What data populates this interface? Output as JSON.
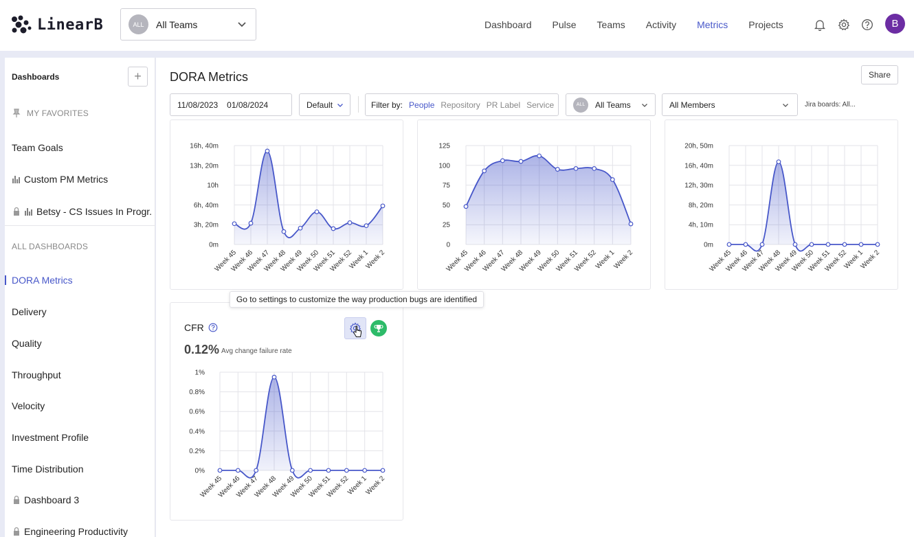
{
  "logo": {
    "text": "LinearB"
  },
  "team_selector": {
    "avatar": "ALL",
    "label": "All Teams"
  },
  "nav": {
    "items": [
      "Dashboard",
      "Pulse",
      "Teams",
      "Activity",
      "Metrics",
      "Projects"
    ],
    "active": "Metrics"
  },
  "top_icons": [
    "bell-icon",
    "gear-icon",
    "help-icon"
  ],
  "user": {
    "initial": "B",
    "color": "#6c2da3"
  },
  "sidebar": {
    "title": "Dashboards",
    "add_label": "+",
    "favorites_label": "MY FAVORITES",
    "favorites": [
      {
        "label": "Team Goals",
        "icon": ""
      },
      {
        "label": "Custom PM Metrics",
        "icon": "bar-chart-icon"
      },
      {
        "label": "Betsy - CS Issues In Progr...",
        "icon": "lock-icon"
      }
    ],
    "all_label": "ALL DASHBOARDS",
    "items": [
      {
        "label": "DORA Metrics",
        "active": true
      },
      {
        "label": "Delivery"
      },
      {
        "label": "Quality"
      },
      {
        "label": "Throughput"
      },
      {
        "label": "Velocity"
      },
      {
        "label": "Investment Profile"
      },
      {
        "label": "Time Distribution"
      },
      {
        "label": "Dashboard 3",
        "locked": true
      },
      {
        "label": "Engineering Productivity",
        "locked": true
      }
    ]
  },
  "page": {
    "title": "DORA Metrics",
    "share_label": "Share",
    "date_from": "11/08/2023",
    "date_to": "01/08/2024",
    "preset": "Default",
    "filter_by_label": "Filter by:",
    "filter_options": [
      "People",
      "Repository",
      "PR Label",
      "Service"
    ],
    "filter_active": "People",
    "team_filter": {
      "avatar": "ALL",
      "label": "All Teams"
    },
    "members_filter": "All Members",
    "jira_label": "Jira boards: All..."
  },
  "accent_color": "#4757c9",
  "cfr_card": {
    "title": "CFR",
    "value": "0.12%",
    "subtitle": "Avg change failure rate",
    "tooltip": "Go to settings to customize the way production bugs are identified"
  },
  "chart_data": [
    {
      "type": "area",
      "categories": [
        "Week 45",
        "Week 46",
        "Week 47",
        "Week 48",
        "Week 49",
        "Week 50",
        "Week 51",
        "Week 52",
        "Week 1",
        "Week 2"
      ],
      "y_ticks": [
        "0m",
        "3h, 20m",
        "6h, 40m",
        "10h",
        "13h, 20m",
        "16h, 40m"
      ],
      "ylim": [
        0,
        1000
      ],
      "values": [
        210,
        215,
        945,
        130,
        165,
        330,
        160,
        220,
        190,
        390
      ],
      "ylabel": "",
      "xlabel": "",
      "grid": true
    },
    {
      "type": "area",
      "categories": [
        "Week 45",
        "Week 46",
        "Week 47",
        "Week 48",
        "Week 49",
        "Week 50",
        "Week 51",
        "Week 52",
        "Week 1",
        "Week 2"
      ],
      "y_ticks": [
        "0",
        "25",
        "50",
        "75",
        "100",
        "125"
      ],
      "ylim": [
        0,
        125
      ],
      "values": [
        48,
        93,
        106,
        105,
        112,
        95,
        96,
        96,
        82,
        26
      ],
      "ylabel": "",
      "xlabel": "",
      "grid": true
    },
    {
      "type": "area",
      "categories": [
        "Week 45",
        "Week 46",
        "Week 47",
        "Week 48",
        "Week 49",
        "Week 50",
        "Week 51",
        "Week 52",
        "Week 1",
        "Week 2"
      ],
      "y_ticks": [
        "0m",
        "4h, 10m",
        "8h, 20m",
        "12h, 30m",
        "16h, 40m",
        "20h, 50m"
      ],
      "ylim": [
        0,
        1250
      ],
      "values": [
        0,
        0,
        0,
        1045,
        0,
        0,
        0,
        0,
        0,
        0
      ],
      "ylabel": "",
      "xlabel": "",
      "grid": true
    },
    {
      "type": "area",
      "title": "CFR",
      "categories": [
        "Week 45",
        "Week 46",
        "Week 47",
        "Week 48",
        "Week 49",
        "Week 50",
        "Week 51",
        "Week 52",
        "Week 1",
        "Week 2"
      ],
      "y_ticks": [
        "0%",
        "0.2%",
        "0.4%",
        "0.6%",
        "0.8%",
        "1%"
      ],
      "ylim": [
        0,
        1
      ],
      "values": [
        0,
        0,
        0,
        0.95,
        0,
        0,
        0,
        0,
        0,
        0
      ],
      "ylabel": "",
      "xlabel": "",
      "grid": true
    }
  ]
}
